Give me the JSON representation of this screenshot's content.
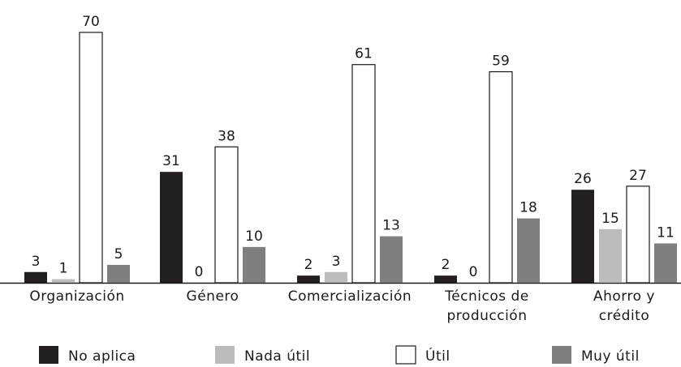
{
  "chart_data": {
    "type": "bar",
    "categories": [
      "Organización",
      "Género",
      "Comercialización",
      "Técnicos de\nproducción",
      "Ahorro y\ncrédito"
    ],
    "series": [
      {
        "name": "No aplica",
        "color": "#231f20",
        "values": [
          3,
          31,
          2,
          2,
          26
        ]
      },
      {
        "name": "Nada útil",
        "color": "#bcbcbc",
        "values": [
          1,
          0,
          3,
          0,
          15
        ]
      },
      {
        "name": "Útil",
        "color": "#ffffff",
        "values": [
          70,
          38,
          61,
          59,
          27
        ]
      },
      {
        "name": "Muy útil",
        "color": "#7f7f7f",
        "values": [
          5,
          10,
          13,
          18,
          11
        ]
      }
    ],
    "legend": "bottom"
  }
}
